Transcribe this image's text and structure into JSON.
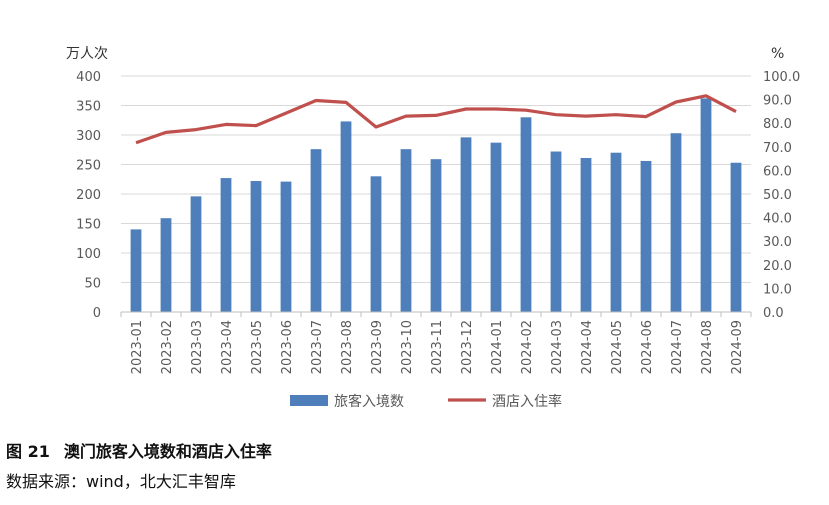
{
  "chart_data": {
    "type": "bar",
    "categories": [
      "2023-01",
      "2023-02",
      "2023-03",
      "2023-04",
      "2023-05",
      "2023-06",
      "2023-07",
      "2023-08",
      "2023-09",
      "2023-10",
      "2023-11",
      "2023-12",
      "2024-01",
      "2024-02",
      "2024-03",
      "2024-04",
      "2024-05",
      "2024-06",
      "2024-07",
      "2024-08",
      "2024-09"
    ],
    "series": [
      {
        "name": "旅客入境数",
        "type": "bar",
        "axis": "left",
        "color": "#4e7fbb",
        "values": [
          140,
          159,
          196,
          227,
          222,
          221,
          276,
          323,
          230,
          276,
          259,
          296,
          287,
          330,
          272,
          261,
          270,
          256,
          303,
          362,
          253
        ]
      },
      {
        "name": "酒店入住率",
        "type": "line",
        "axis": "right",
        "color": "#c0504d",
        "values": [
          71.7,
          76.1,
          77.3,
          79.5,
          79.0,
          84.3,
          89.6,
          88.8,
          78.4,
          83.0,
          83.3,
          86.0,
          86.0,
          85.5,
          83.6,
          83.0,
          83.6,
          82.8,
          89.0,
          91.6,
          84.9
        ]
      }
    ],
    "y_left": {
      "unit": "万人次",
      "min": 0,
      "max": 400,
      "step": 50,
      "ticks": [
        "0",
        "50",
        "100",
        "150",
        "200",
        "250",
        "300",
        "350",
        "400"
      ]
    },
    "y_right": {
      "unit": "%",
      "min": 0,
      "max": 100,
      "step": 10,
      "ticks": [
        "0.0",
        "10.0",
        "20.0",
        "30.0",
        "40.0",
        "50.0",
        "60.0",
        "70.0",
        "80.0",
        "90.0",
        "100.0"
      ]
    },
    "grid": true,
    "legend_position": "bottom"
  },
  "caption": {
    "figure_label": "图 21",
    "figure_title": "澳门旅客入境数和酒店入住率",
    "source": "数据来源：wind，北大汇丰智库"
  }
}
